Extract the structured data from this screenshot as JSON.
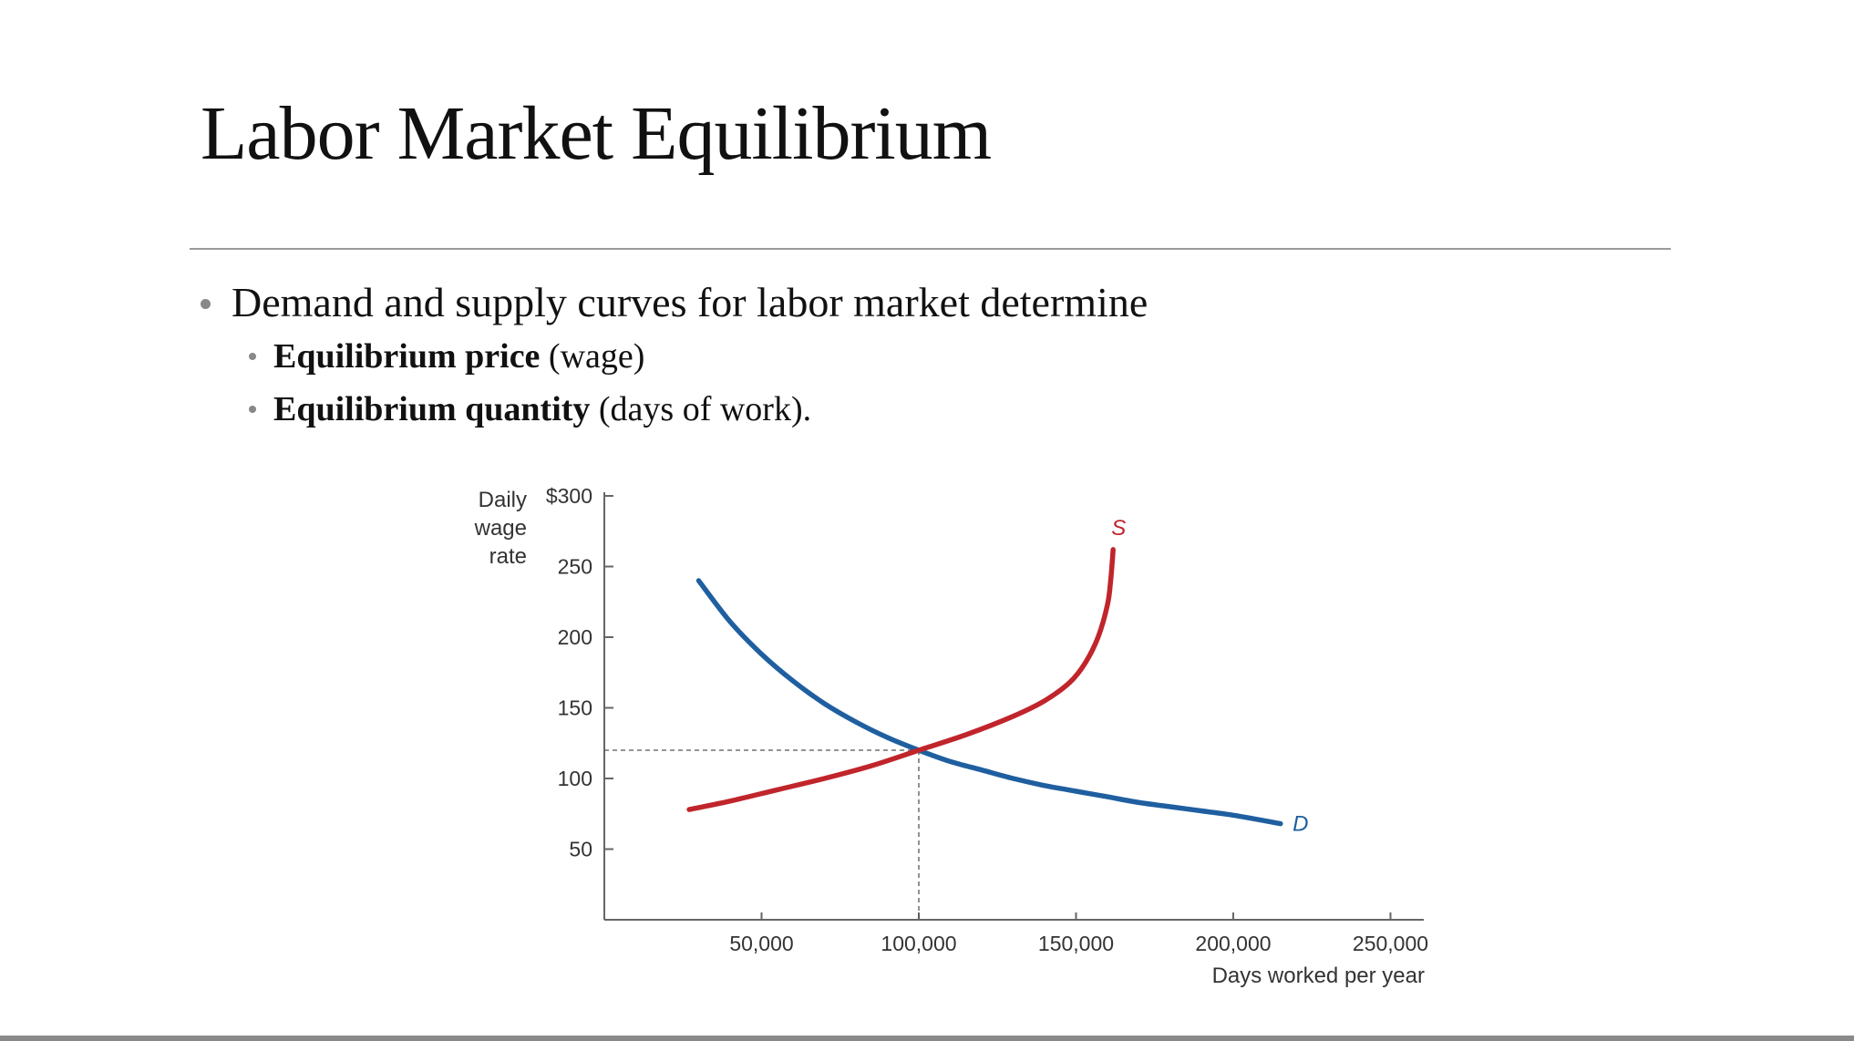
{
  "slide": {
    "title": "Labor Market Equilibrium",
    "bullet_main": "Demand and supply curves for labor market determine",
    "sub_bullets": [
      {
        "strong": "Equilibrium price",
        "rest": " (wage)"
      },
      {
        "strong": "Equilibrium quantity",
        "rest": " (days of work)."
      }
    ]
  },
  "chart_data": {
    "type": "line",
    "xlabel": "Days worked per year",
    "ylabel_lines": [
      "Daily",
      "wage",
      "rate"
    ],
    "xlim": [
      0,
      260000
    ],
    "ylim": [
      0,
      300
    ],
    "x_ticks": [
      50000,
      100000,
      150000,
      200000,
      250000
    ],
    "x_tick_labels": [
      "50,000",
      "100,000",
      "150,000",
      "200,000",
      "250,000"
    ],
    "y_ticks": [
      50,
      100,
      150,
      200,
      250,
      300
    ],
    "y_tick_labels": [
      "50",
      "100",
      "150",
      "200",
      "250",
      "$300"
    ],
    "grid": false,
    "series": [
      {
        "name": "D",
        "color": "#1f5fa0",
        "x": [
          30000,
          40000,
          50000,
          60000,
          70000,
          80000,
          90000,
          100000,
          110000,
          120000,
          130000,
          140000,
          150000,
          160000,
          170000,
          180000,
          190000,
          200000,
          215000
        ],
        "y": [
          240,
          211,
          188,
          169,
          153,
          140,
          129,
          120,
          112,
          106,
          100,
          95,
          91,
          87,
          83,
          80,
          77,
          74,
          68
        ]
      },
      {
        "name": "S",
        "color": "#c0252b",
        "x": [
          27000,
          40000,
          55000,
          70000,
          85000,
          100000,
          115000,
          130000,
          140000,
          148000,
          153000,
          157000,
          160000,
          161000,
          161800
        ],
        "y": [
          78,
          84,
          92,
          100,
          109,
          120,
          131,
          144,
          155,
          168,
          182,
          200,
          223,
          240,
          262
        ]
      }
    ],
    "equilibrium": {
      "x": 100000,
      "y": 120
    }
  }
}
